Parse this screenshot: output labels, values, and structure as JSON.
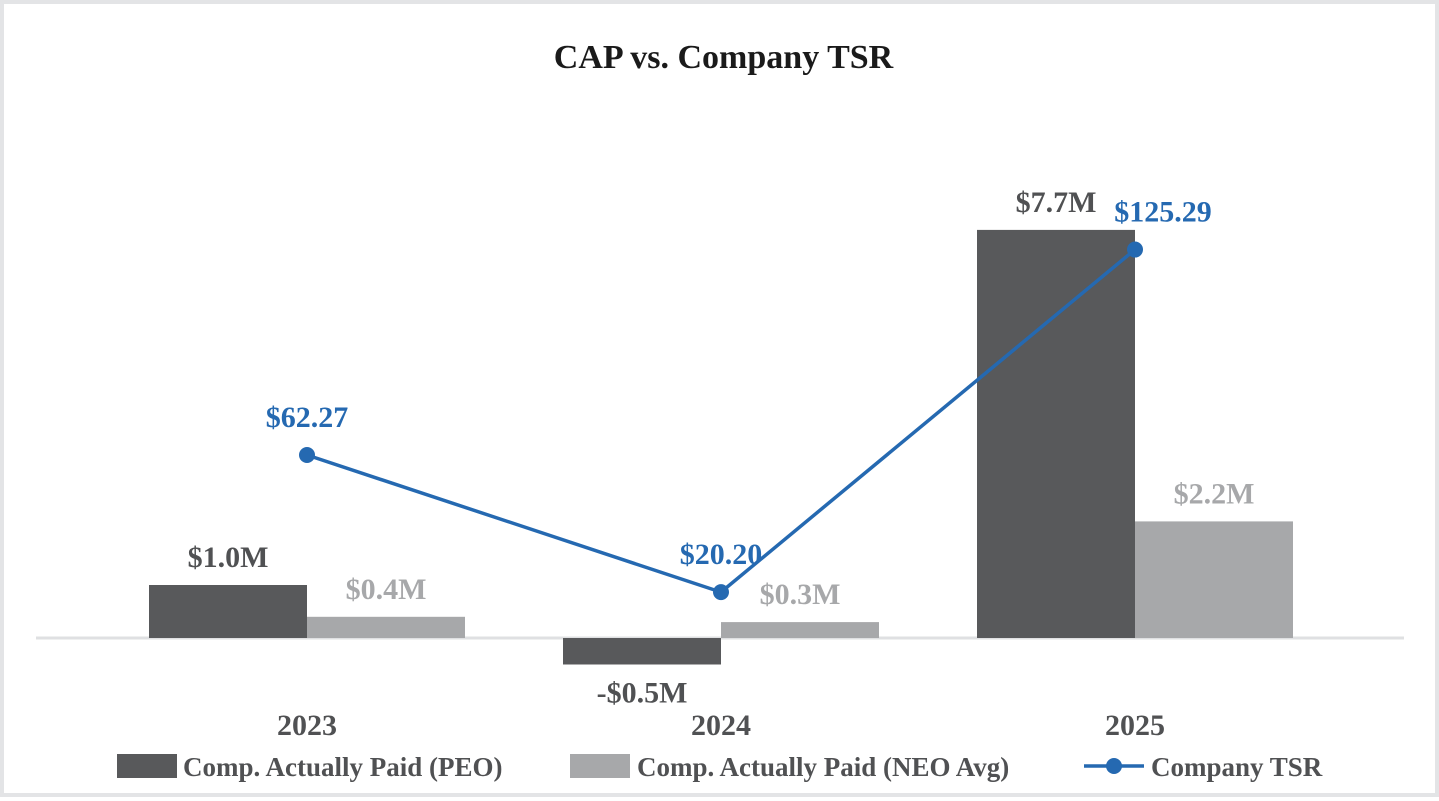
{
  "chart_data": {
    "type": "bar",
    "title": "CAP vs. Company TSR",
    "xlabel": "",
    "ylabel": "",
    "categories": [
      "2023",
      "2024",
      "2025"
    ],
    "series": [
      {
        "name": "Comp. Actually Paid (PEO)",
        "kind": "bar",
        "color": "#58595b",
        "values": [
          1.0,
          -0.5,
          7.7
        ],
        "labels": [
          "$1.0M",
          "-$0.5M",
          "$7.7M"
        ]
      },
      {
        "name": "Comp. Actually Paid (NEO Avg)",
        "kind": "bar",
        "color": "#a7a8aa",
        "values": [
          0.4,
          0.3,
          2.2
        ],
        "labels": [
          "$0.4M",
          "$0.3M",
          "$2.2M"
        ]
      },
      {
        "name": "Company TSR",
        "kind": "line",
        "color": "#2569b1",
        "values": [
          62.27,
          20.2,
          125.29
        ],
        "labels": [
          "$62.27",
          "$20.20",
          "$125.29"
        ]
      }
    ],
    "grid": false,
    "legend_position": "bottom"
  }
}
